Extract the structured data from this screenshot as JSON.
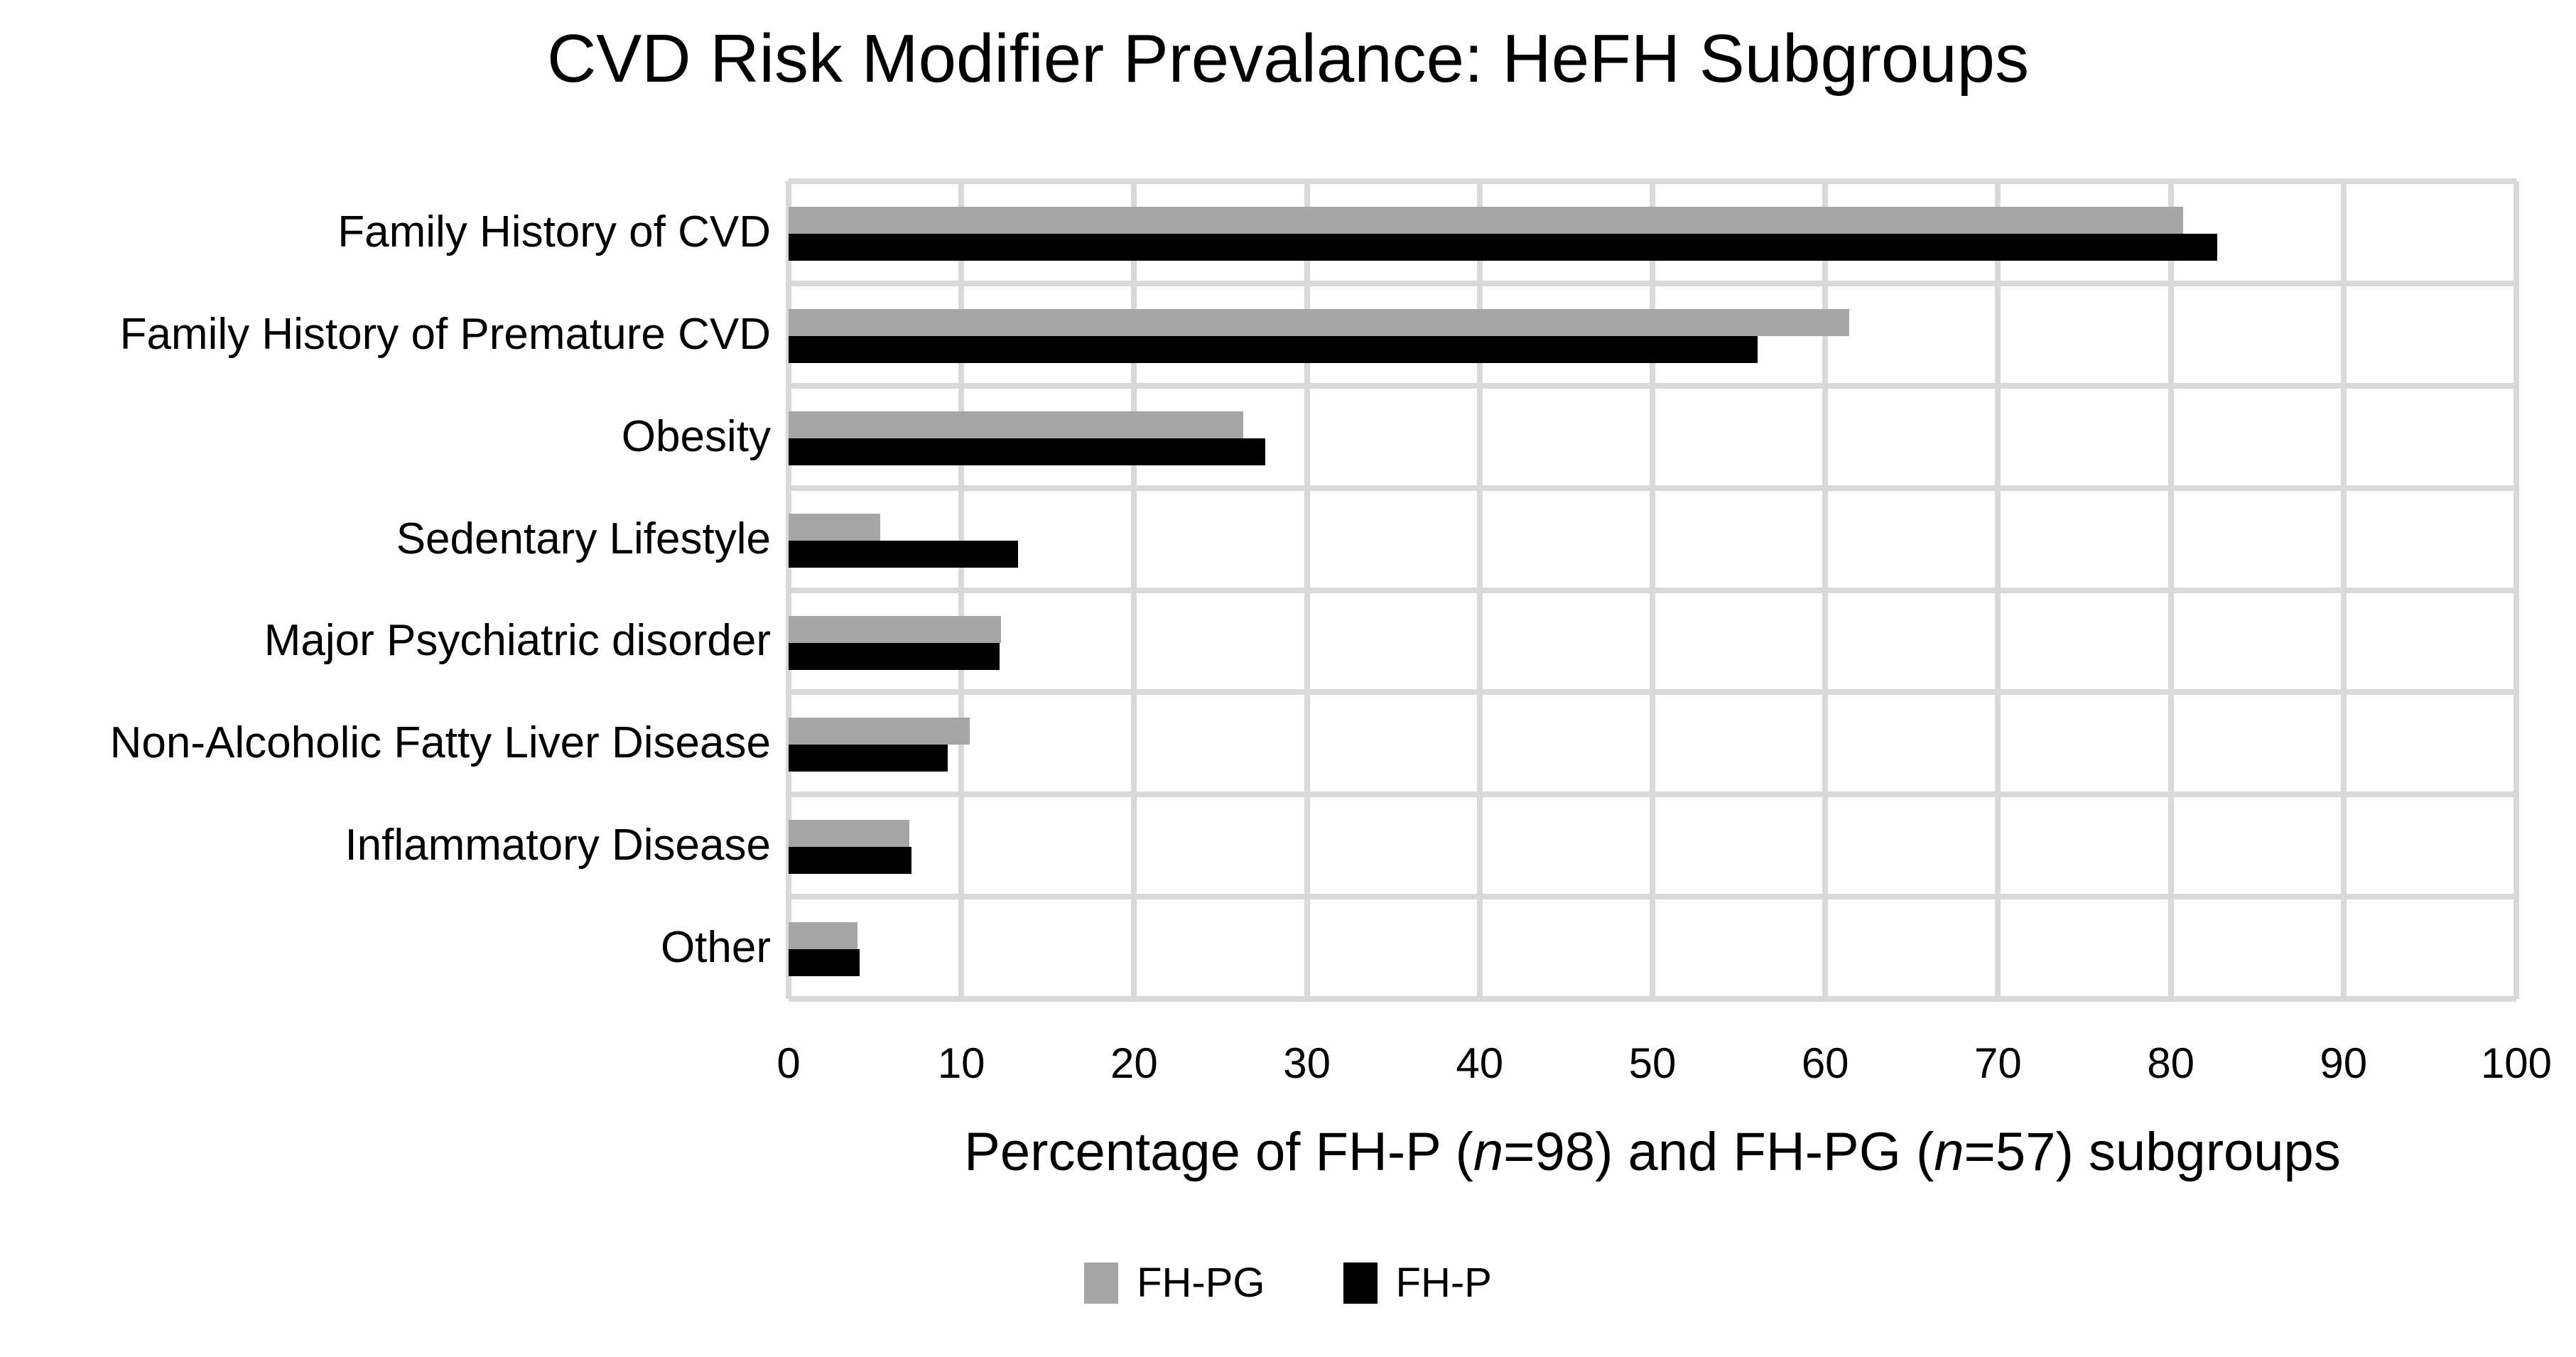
{
  "chart_data": {
    "type": "bar",
    "orientation": "horizontal",
    "title": "CVD Risk Modifier Prevalance: HeFH Subgroups",
    "categories": [
      "Family History of CVD",
      "Family History of Premature CVD",
      "Obesity",
      "Sedentary Lifestyle",
      "Major Psychiatric disorder",
      "Non-Alcoholic Fatty Liver Disease",
      "Inflammatory Disease",
      "Other"
    ],
    "series": [
      {
        "name": "FH-PG",
        "color": "#A6A6A6",
        "values": [
          80.7,
          61.4,
          26.3,
          5.3,
          12.3,
          10.5,
          7.0,
          4.0
        ]
      },
      {
        "name": "FH-P",
        "color": "#000000",
        "values": [
          82.7,
          56.1,
          27.6,
          13.3,
          12.2,
          9.2,
          7.1,
          4.1
        ]
      }
    ],
    "xlabel_parts": [
      {
        "text": "Percentage of FH-P (",
        "italic": false
      },
      {
        "text": "n",
        "italic": true
      },
      {
        "text": "=98) and FH-PG (",
        "italic": false
      },
      {
        "text": "n",
        "italic": true
      },
      {
        "text": "=57) subgroups",
        "italic": false
      }
    ],
    "xlabel_plain": "Percentage of FH-P (n=98) and FH-PG (n=57) subgroups",
    "xlim": [
      0,
      100
    ],
    "xticks": [
      0,
      10,
      20,
      30,
      40,
      50,
      60,
      70,
      80,
      90,
      100
    ],
    "grid": true,
    "gridline_color": "#D9D9D9",
    "background": "#FFFFFF",
    "legend_position": "bottom"
  }
}
